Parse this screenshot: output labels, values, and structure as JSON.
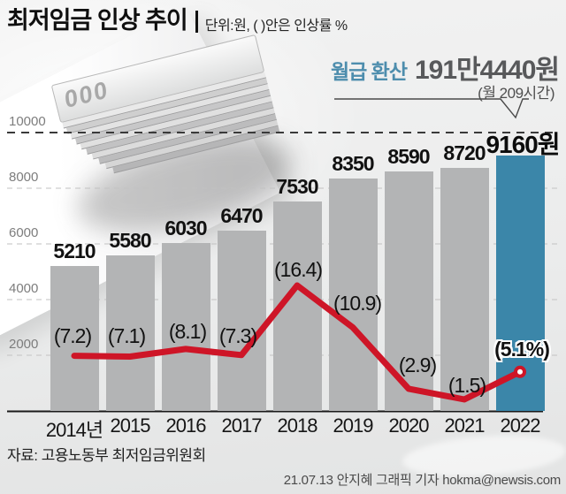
{
  "header": {
    "title": "최저임금 인상 추이",
    "subtitle": "단위:원, ( )안은 인상률 %",
    "callout": {
      "label": "월급 환산",
      "value": "191만4440원",
      "sub": "(월 209시간)"
    }
  },
  "decor": {
    "banknote_text": "000"
  },
  "chart_data": {
    "type": "bar+line",
    "categories": [
      "2014년",
      "2015",
      "2016",
      "2017",
      "2018",
      "2019",
      "2020",
      "2021",
      "2022"
    ],
    "series": [
      {
        "name": "minimum-wage-won",
        "type": "bar",
        "values": [
          5210,
          5580,
          6030,
          6470,
          7530,
          8350,
          8590,
          8720,
          9160
        ],
        "labels": [
          "5210",
          "5580",
          "6030",
          "6470",
          "7530",
          "8350",
          "8590",
          "8720",
          "9160원"
        ]
      },
      {
        "name": "increase-rate-percent",
        "type": "line",
        "values": [
          7.2,
          7.1,
          8.1,
          7.3,
          16.4,
          10.9,
          2.9,
          1.5,
          5.1
        ],
        "labels": [
          "(7.2)",
          "(7.1)",
          "(8.1)",
          "(7.3)",
          "(16.4)",
          "(10.9)",
          "(2.9)",
          "(1.5)",
          "(5.1%)"
        ]
      }
    ],
    "y_ticks": [
      2000,
      4000,
      6000,
      8000,
      10000
    ],
    "ylim": [
      0,
      10500
    ],
    "grid": true,
    "highlight_index": 8,
    "colors": {
      "bar": "#b3b4b5",
      "bar_highlight": "#3b86a9",
      "line": "#ce1527",
      "accent_text": "#4d8dad"
    }
  },
  "footer": {
    "source": "자료: 고용노동부 최저임금위원회",
    "credit": "21.07.13 안지혜 그래픽 기자 hokma@newsis.com"
  }
}
